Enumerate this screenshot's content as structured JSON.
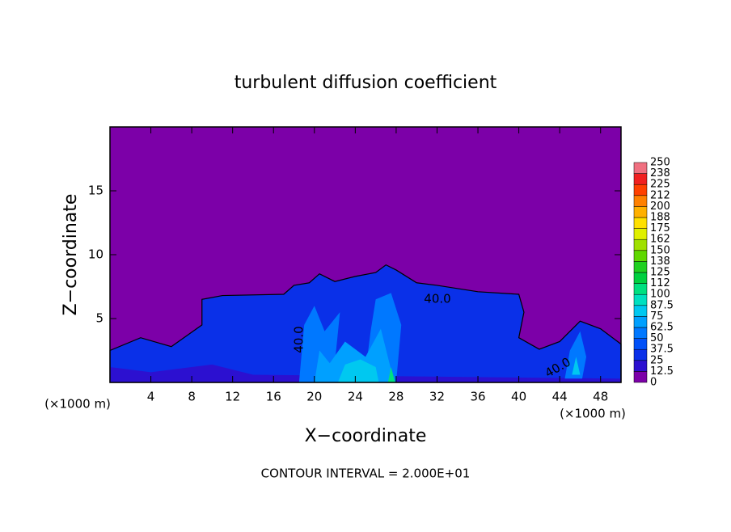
{
  "chart_data": {
    "type": "contour",
    "title": "turbulent diffusion coefficient",
    "x_label": "X−coordinate",
    "y_label": "Z−coordinate",
    "x_unit": "(×1000 m)",
    "x_unit_right": "(×1000 m)",
    "footer": "CONTOUR INTERVAL = 2.000E+01",
    "annotations": [
      "40.0",
      "40.0",
      "40.0"
    ],
    "xlim": [
      0,
      50
    ],
    "ylim": [
      0,
      20
    ],
    "xticks": [
      4,
      8,
      12,
      16,
      20,
      24,
      28,
      32,
      36,
      40,
      44,
      48
    ],
    "yticks": [
      5,
      10,
      15
    ],
    "levels": [
      0,
      12.5,
      25,
      37.5,
      50,
      62.5,
      75,
      87.5,
      100,
      {
        "value": 112.5,
        "label": "112"
      },
      125,
      {
        "value": 137.5,
        "label": "138"
      },
      150,
      {
        "value": 162.5,
        "label": "162"
      },
      175,
      {
        "value": 187.5,
        "label": "188"
      },
      200,
      {
        "value": 212.5,
        "label": "212"
      },
      225,
      {
        "value": 237.5,
        "label": "238"
      },
      250
    ],
    "colors": [
      "#7c00a8",
      "#2c10d0",
      "#0a30e8",
      "#0050f8",
      "#0078ff",
      "#00a0ff",
      "#00c8f0",
      "#00e0c0",
      "#00e080",
      "#00d040",
      "#20d020",
      "#60d800",
      "#a0e000",
      "#e0f000",
      "#ffe000",
      "#ffb000",
      "#ff8000",
      "#ff4000",
      "#f02020",
      "#f07080"
    ]
  }
}
